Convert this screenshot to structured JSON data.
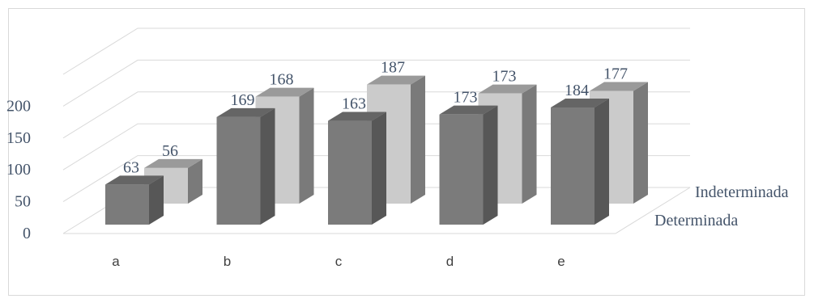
{
  "chart_data": {
    "type": "bar",
    "style": "3d-clustered-depth",
    "categories": [
      "a",
      "b",
      "c",
      "d",
      "e"
    ],
    "series": [
      {
        "name": "Determinada",
        "values": [
          63,
          169,
          163,
          173,
          184
        ]
      },
      {
        "name": "Indeterminada",
        "values": [
          56,
          168,
          187,
          173,
          177
        ]
      }
    ],
    "y_ticks": [
      "0",
      "50",
      "100",
      "150",
      "200"
    ],
    "ylim": [
      0,
      250
    ],
    "grid": true,
    "colors": {
      "front": "#7b7b7b",
      "front_top": "#656565",
      "front_side": "#575757",
      "back": "#cbcbcb",
      "back_top": "#9a9a9a",
      "back_side": "#7a7a7a",
      "gridline": "#d9d9d9",
      "label": "#44546a",
      "category_label": "#404040"
    }
  }
}
